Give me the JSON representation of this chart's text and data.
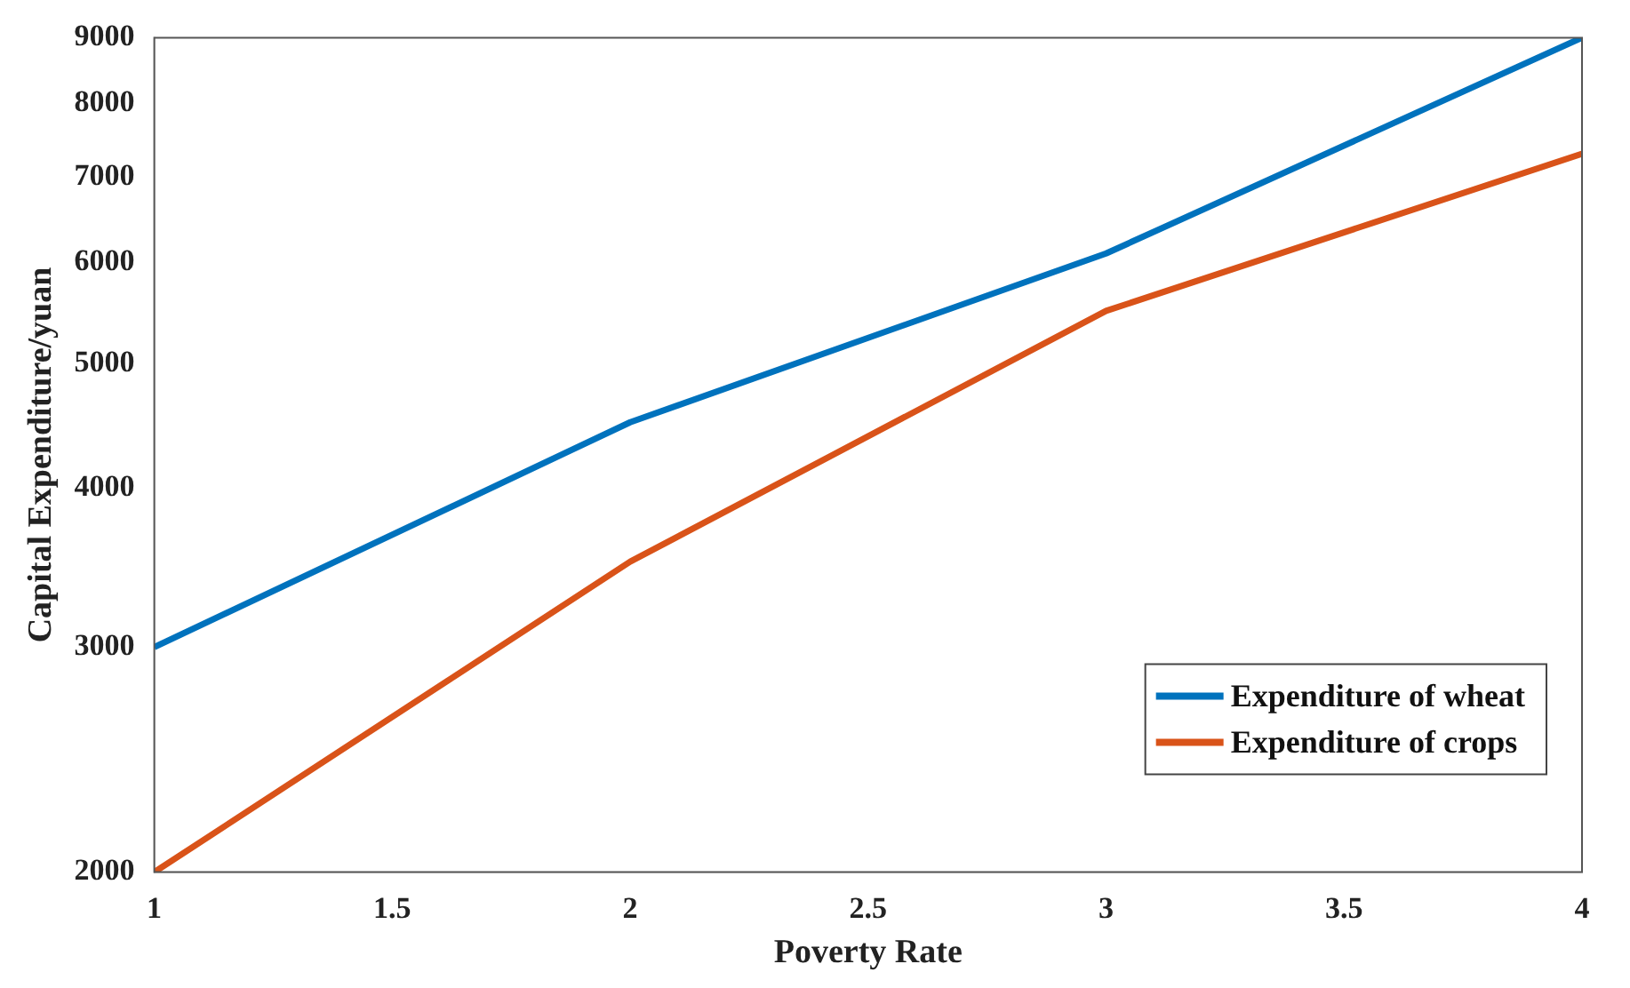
{
  "chart_data": {
    "type": "line",
    "xlabel": "Poverty Rate",
    "ylabel": "Capital Expenditure/yuan",
    "x": [
      1,
      2,
      3,
      4
    ],
    "series": [
      {
        "name": "Expenditure of wheat",
        "color": "#0072bd",
        "values": [
          3000,
          4500,
          6100,
          9000
        ]
      },
      {
        "name": "Expenditure of crops",
        "color": "#d95319",
        "values": [
          2000,
          3500,
          5500,
          7300
        ]
      }
    ],
    "xlim": [
      1,
      4
    ],
    "xticks": [
      1,
      1.5,
      2,
      2.5,
      3,
      3.5,
      4
    ],
    "ylim": [
      2000,
      9000
    ],
    "yticks": [
      2000,
      3000,
      4000,
      5000,
      6000,
      7000,
      8000,
      9000
    ],
    "log": "y",
    "grid": false,
    "legend": "bottom right",
    "marker": "none",
    "line_style": "solid"
  }
}
